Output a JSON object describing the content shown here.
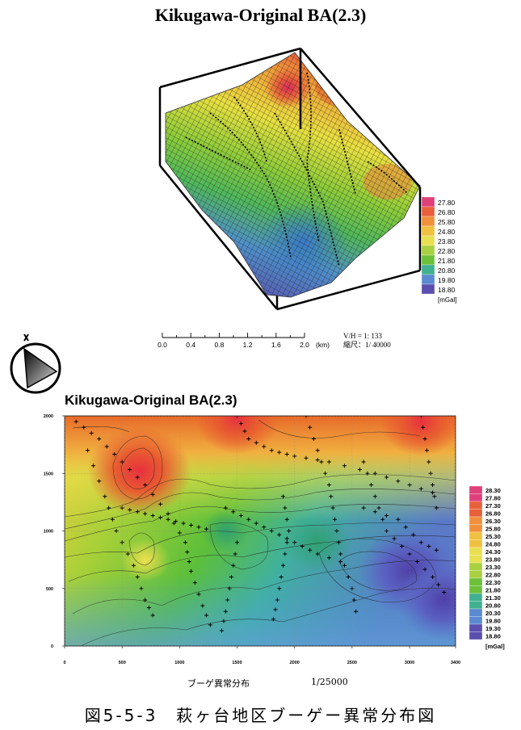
{
  "top": {
    "title": "Kikugawa-Original BA(2.3)",
    "legend_values": [
      "27.80",
      "26.80",
      "25.80",
      "24.80",
      "23.80",
      "22.80",
      "21.80",
      "20.80",
      "19.80",
      "18.80"
    ],
    "legend_unit": "[mGal]",
    "scale_ticks": [
      "0.0",
      "0.4",
      "0.8",
      "1.2",
      "1.6",
      "2.0"
    ],
    "scale_unit": "(km)",
    "vh_ratio": "V/H = 1:        133",
    "reduction": "縮尺：1/  40000"
  },
  "bottom": {
    "title": "Kikugawa-Original BA(2.3)",
    "legend_values": [
      "28.30",
      "27.80",
      "27.30",
      "26.80",
      "26.30",
      "25.80",
      "25.30",
      "24.80",
      "24.30",
      "23.80",
      "23.30",
      "22.80",
      "22.30",
      "21.80",
      "21.30",
      "20.80",
      "20.30",
      "19.80",
      "19.30",
      "18.80"
    ],
    "legend_unit": "[mGal]",
    "subcaption_label": "ブーゲ異常分布",
    "subcaption_scale": "1/25000"
  },
  "caption": "図5-5-3　萩ヶ台地区ブーゲー異常分布図",
  "colors": {
    "low": "#5a4fae",
    "mid": "#5cbf3a",
    "high": "#e03a2a"
  },
  "chart_data": [
    {
      "type": "heatmap",
      "view": "3d-surface",
      "title": "Kikugawa-Original BA(2.3)",
      "unit": "[mGal]",
      "levels": [
        27.8,
        26.8,
        25.8,
        24.8,
        23.8,
        22.8,
        21.8,
        20.8,
        19.8,
        18.8
      ],
      "scale_km": [
        0.0,
        0.4,
        0.8,
        1.2,
        1.6,
        2.0
      ],
      "vertical_exaggeration": 133,
      "scale_denominator": 40000
    },
    {
      "type": "heatmap",
      "view": "contour-map",
      "title": "Kikugawa-Original BA(2.3)",
      "unit": "[mGal]",
      "x_ticks": [
        0,
        500,
        1000,
        1500,
        2000,
        2500,
        3000,
        3400
      ],
      "y_ticks": [
        0,
        500,
        1000,
        1500,
        2000
      ],
      "xlim": [
        0,
        3400
      ],
      "ylim": [
        0,
        2000
      ],
      "levels": [
        28.3,
        27.8,
        27.3,
        26.8,
        26.3,
        25.8,
        25.3,
        24.8,
        24.3,
        23.8,
        23.3,
        22.8,
        22.3,
        21.8,
        21.3,
        20.8,
        20.3,
        19.8,
        19.3,
        18.8
      ],
      "anomalies": [
        {
          "x": 650,
          "y": 1520,
          "value": 28.3,
          "kind": "high"
        },
        {
          "x": 1500,
          "y": 1980,
          "value": 27.0,
          "kind": "high"
        },
        {
          "x": 3100,
          "y": 1950,
          "value": 26.8,
          "kind": "high"
        },
        {
          "x": 1400,
          "y": 1000,
          "value": 22.3,
          "kind": "low"
        },
        {
          "x": 2200,
          "y": 900,
          "value": 21.0,
          "kind": "low"
        },
        {
          "x": 3000,
          "y": 650,
          "value": 18.8,
          "kind": "low"
        },
        {
          "x": 700,
          "y": 750,
          "value": 24.8,
          "kind": "high"
        },
        {
          "x": 3300,
          "y": 400,
          "value": 19.3,
          "kind": "low"
        }
      ]
    }
  ]
}
